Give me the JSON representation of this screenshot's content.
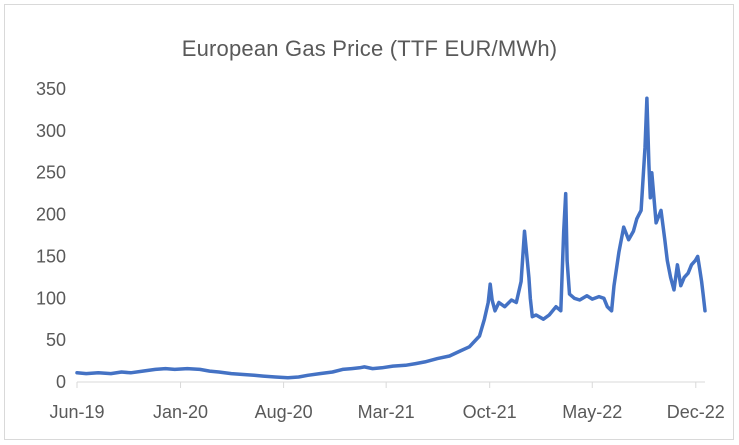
{
  "chart_data": {
    "type": "line",
    "title": "European Gas Price (TTF EUR/MWh)",
    "xlabel": "",
    "ylabel": "",
    "ylim": [
      0,
      350
    ],
    "yticks": [
      "0",
      "50",
      "100",
      "150",
      "200",
      "250",
      "300",
      "350"
    ],
    "xticks": [
      "Jun-19",
      "Jan-20",
      "Aug-20",
      "Mar-21",
      "Oct-21",
      "May-22",
      "Dec-22"
    ],
    "grid": false,
    "legend": "none",
    "line_color": "#4472c4",
    "series": [
      {
        "x": [
          "2019-06-01",
          "2019-06-20",
          "2019-07-15",
          "2019-08-10",
          "2019-09-01",
          "2019-09-20",
          "2019-10-15",
          "2019-11-10",
          "2019-12-01",
          "2019-12-20",
          "2020-01-15",
          "2020-02-10",
          "2020-03-01",
          "2020-03-20",
          "2020-04-15",
          "2020-05-10",
          "2020-06-01",
          "2020-06-20",
          "2020-07-15",
          "2020-08-10",
          "2020-09-01",
          "2020-09-20",
          "2020-10-15",
          "2020-11-10",
          "2020-12-01",
          "2020-12-20",
          "2021-01-05",
          "2021-01-15",
          "2021-02-01",
          "2021-02-20",
          "2021-03-15",
          "2021-04-10",
          "2021-05-01",
          "2021-05-20",
          "2021-06-15",
          "2021-07-10",
          "2021-08-01",
          "2021-08-20",
          "2021-09-10",
          "2021-09-20",
          "2021-09-28",
          "2021-10-02",
          "2021-10-06",
          "2021-10-12",
          "2021-10-20",
          "2021-11-01",
          "2021-11-15",
          "2021-11-25",
          "2021-12-05",
          "2021-12-12",
          "2021-12-21",
          "2021-12-24",
          "2021-12-28",
          "2022-01-05",
          "2022-01-20",
          "2022-02-01",
          "2022-02-15",
          "2022-02-25",
          "2022-03-03",
          "2022-03-07",
          "2022-03-10",
          "2022-03-15",
          "2022-03-25",
          "2022-04-05",
          "2022-04-20",
          "2022-05-01",
          "2022-05-15",
          "2022-05-25",
          "2022-06-01",
          "2022-06-10",
          "2022-06-15",
          "2022-06-25",
          "2022-07-05",
          "2022-07-15",
          "2022-07-25",
          "2022-08-01",
          "2022-08-10",
          "2022-08-18",
          "2022-08-22",
          "2022-08-26",
          "2022-08-29",
          "2022-09-01",
          "2022-09-10",
          "2022-09-20",
          "2022-09-28",
          "2022-10-03",
          "2022-10-10",
          "2022-10-17",
          "2022-10-24",
          "2022-10-31",
          "2022-11-07",
          "2022-11-15",
          "2022-11-22",
          "2022-11-30",
          "2022-12-05",
          "2022-12-09",
          "2022-12-13",
          "2022-12-16",
          "2022-12-20"
        ],
        "y": [
          11,
          10,
          11,
          10,
          12,
          11,
          13,
          15,
          16,
          15,
          16,
          15,
          13,
          12,
          10,
          9,
          8,
          7,
          6,
          5,
          6,
          8,
          10,
          12,
          15,
          16,
          17,
          18,
          16,
          17,
          19,
          20,
          22,
          24,
          28,
          31,
          37,
          42,
          55,
          75,
          95,
          117,
          98,
          85,
          95,
          90,
          98,
          95,
          120,
          180,
          125,
          100,
          78,
          80,
          75,
          80,
          90,
          85,
          180,
          225,
          145,
          105,
          100,
          98,
          103,
          99,
          102,
          100,
          90,
          85,
          115,
          155,
          185,
          170,
          180,
          195,
          205,
          280,
          339,
          260,
          220,
          250,
          190,
          205,
          170,
          145,
          125,
          110,
          140,
          115,
          125,
          130,
          140,
          145,
          150,
          135,
          120,
          105,
          85
        ]
      }
    ]
  }
}
